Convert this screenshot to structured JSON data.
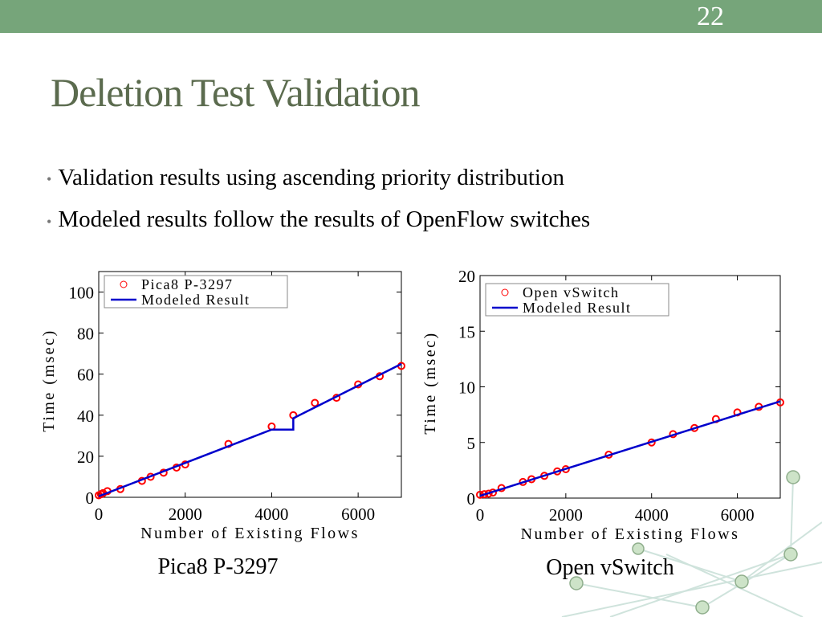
{
  "slide_number": "22",
  "title": "Deletion Test Validation",
  "bullets": [
    "Validation results using ascending priority distribution",
    "Modeled results follow the results of OpenFlow switches"
  ],
  "chart_data": [
    {
      "type": "scatter",
      "caption": "Pica8 P-3297",
      "x_label": "Number of Existing Flows",
      "y_label": "Time (msec)",
      "xlim": [
        0,
        7000
      ],
      "ylim": [
        0,
        110
      ],
      "xticks": [
        0,
        2000,
        4000,
        6000
      ],
      "yticks": [
        0,
        20,
        40,
        60,
        80,
        100
      ],
      "legend": "upper left",
      "series": [
        {
          "name": "Pica8 P-3297",
          "color": "#ff0000",
          "style": "markers",
          "x": [
            0,
            50,
            100,
            200,
            500,
            1000,
            1200,
            1500,
            1800,
            2000,
            3000,
            4000,
            4500,
            5000,
            5500,
            6000,
            6500,
            7000
          ],
          "values": [
            1,
            1.5,
            2,
            3,
            4,
            8,
            10,
            12,
            14.5,
            16,
            26,
            34.5,
            40,
            46,
            48.5,
            55,
            59,
            64
          ]
        },
        {
          "name": "Modeled Result",
          "color": "#0000cc",
          "style": "line",
          "x": [
            0,
            4000,
            4500,
            4500,
            7000
          ],
          "values": [
            0.5,
            33,
            33,
            38.5,
            65
          ]
        }
      ]
    },
    {
      "type": "scatter",
      "caption": "Open vSwitch",
      "x_label": "Number of Existing Flows",
      "y_label": "Time (msec)",
      "xlim": [
        0,
        7000
      ],
      "ylim": [
        0,
        20
      ],
      "xticks": [
        0,
        2000,
        4000,
        6000
      ],
      "yticks": [
        0,
        5,
        10,
        15,
        20
      ],
      "legend": "upper left",
      "series": [
        {
          "name": "Open vSwitch",
          "color": "#ff0000",
          "style": "markers",
          "x": [
            0,
            100,
            200,
            300,
            500,
            1000,
            1200,
            1500,
            1800,
            2000,
            3000,
            4000,
            4500,
            5000,
            5500,
            6000,
            6500,
            7000
          ],
          "values": [
            0.3,
            0.35,
            0.4,
            0.5,
            0.9,
            1.45,
            1.7,
            2.0,
            2.4,
            2.6,
            3.9,
            5.0,
            5.75,
            6.3,
            7.1,
            7.7,
            8.2,
            8.6
          ]
        },
        {
          "name": "Modeled Result",
          "color": "#0000cc",
          "style": "line",
          "x": [
            0,
            7000
          ],
          "values": [
            0.2,
            8.7
          ]
        }
      ]
    }
  ]
}
